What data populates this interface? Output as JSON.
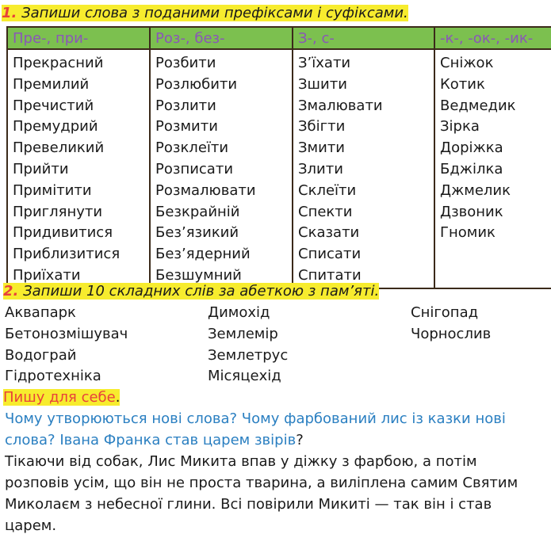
{
  "task1": {
    "number": "1.",
    "title": "Запиши слова з поданими префіксами і суфіксами.",
    "headers": [
      "Пре-, при-",
      "Роз-, без-",
      "З-, с-",
      "-к-, -ок-, -ик-"
    ],
    "columns": [
      [
        "Прекрасний",
        "Премилий",
        "Пречистий",
        "Премудрий",
        "Превеликий",
        "Прийти",
        "Примітити",
        "Приглянути",
        "Придивитися",
        "Приблизитися",
        "Приїхати"
      ],
      [
        "Розбити",
        "Розлюбити",
        "Розлити",
        "Розмити",
        "Розклеїти",
        "Розписати",
        "Розмалювати",
        "Безкрайній",
        "Без’язикий",
        "Без’ядерний",
        "Безшумний"
      ],
      [
        "З’їхати",
        "Зшити",
        "Змалювати",
        "Збігти",
        "Змити",
        "Злити",
        "Склеїти",
        "Спекти",
        "Сказати",
        "Списати",
        "Спитати"
      ],
      [
        "Сніжок",
        "Котик",
        "Ведмедик",
        "Зірка",
        "Доріжка",
        "Бджілка",
        "Джмелик",
        "Дзвоник",
        "Гномик"
      ]
    ]
  },
  "task2": {
    "number": "2.",
    "title": "Запиши 10 складних слів за абеткою з пам’яті.",
    "columns": [
      [
        "Аквапарк",
        "Бетонозмішувач",
        "Водограй",
        "Гідротехніка"
      ],
      [
        "Димохід",
        "Землемір",
        "Землетрус",
        "Місяцехід"
      ],
      [
        "Снігопад",
        "Чорнослив"
      ]
    ]
  },
  "self": {
    "title": "Пишу для себе",
    "title_end": ".",
    "question_lines": [
      "Чому утворюються нові слова? Чому фарбований лис із казки нові",
      "слова? Івана Франка став царем звірів"
    ],
    "question_end": "?",
    "answer_lines": [
      "Тікаючи від собак, Лис Микита впав у діжку з фарбою, а потім",
      "розповів усім, що він не проста тварина, а виліплена самим Святим",
      "Миколаєм з небесної глини. Всі повірили Микиті — так він і став",
      "царем."
    ]
  },
  "colors": {
    "highlight": "#f7ec2e",
    "header_bg": "#7cc04f",
    "header_text": "#8a56b8",
    "number": "#e8413a",
    "question": "#2a7fc1"
  }
}
